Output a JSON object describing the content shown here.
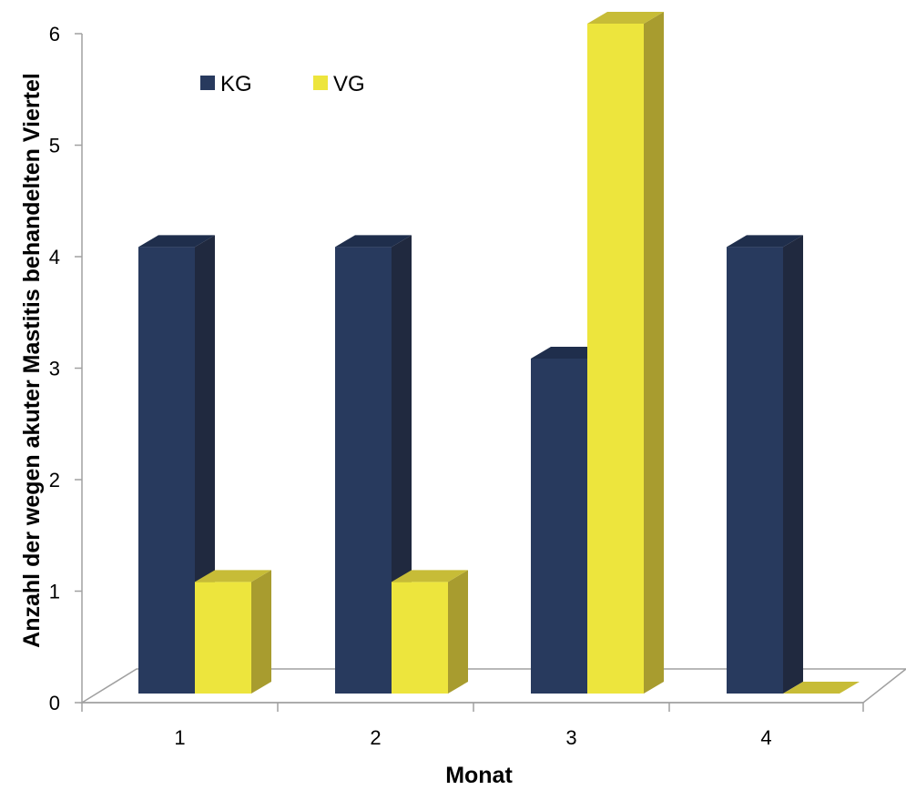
{
  "chart_data": {
    "type": "bar",
    "categories": [
      "1",
      "2",
      "3",
      "4"
    ],
    "series": [
      {
        "name": "KG",
        "values": [
          4,
          4,
          3,
          4
        ]
      },
      {
        "name": "VG",
        "values": [
          1,
          1,
          6,
          0
        ]
      }
    ],
    "xlabel": "Monat",
    "ylabel": "Anzahl der wegen akuter Mastitis behandelten Viertel",
    "yticks": [
      "0",
      "1",
      "2",
      "3",
      "4",
      "5",
      "6"
    ],
    "ylim": [
      0,
      6
    ],
    "grid": false,
    "legend_position": "top-left",
    "three_d": true
  },
  "colors": {
    "KG": {
      "front": "#283a5e",
      "side": "#20293f",
      "top": "#1f2e4c"
    },
    "VG": {
      "front": "#ede53d",
      "side": "#a89c2f",
      "top": "#c7bc37"
    },
    "axis": "#a0a0a0"
  }
}
